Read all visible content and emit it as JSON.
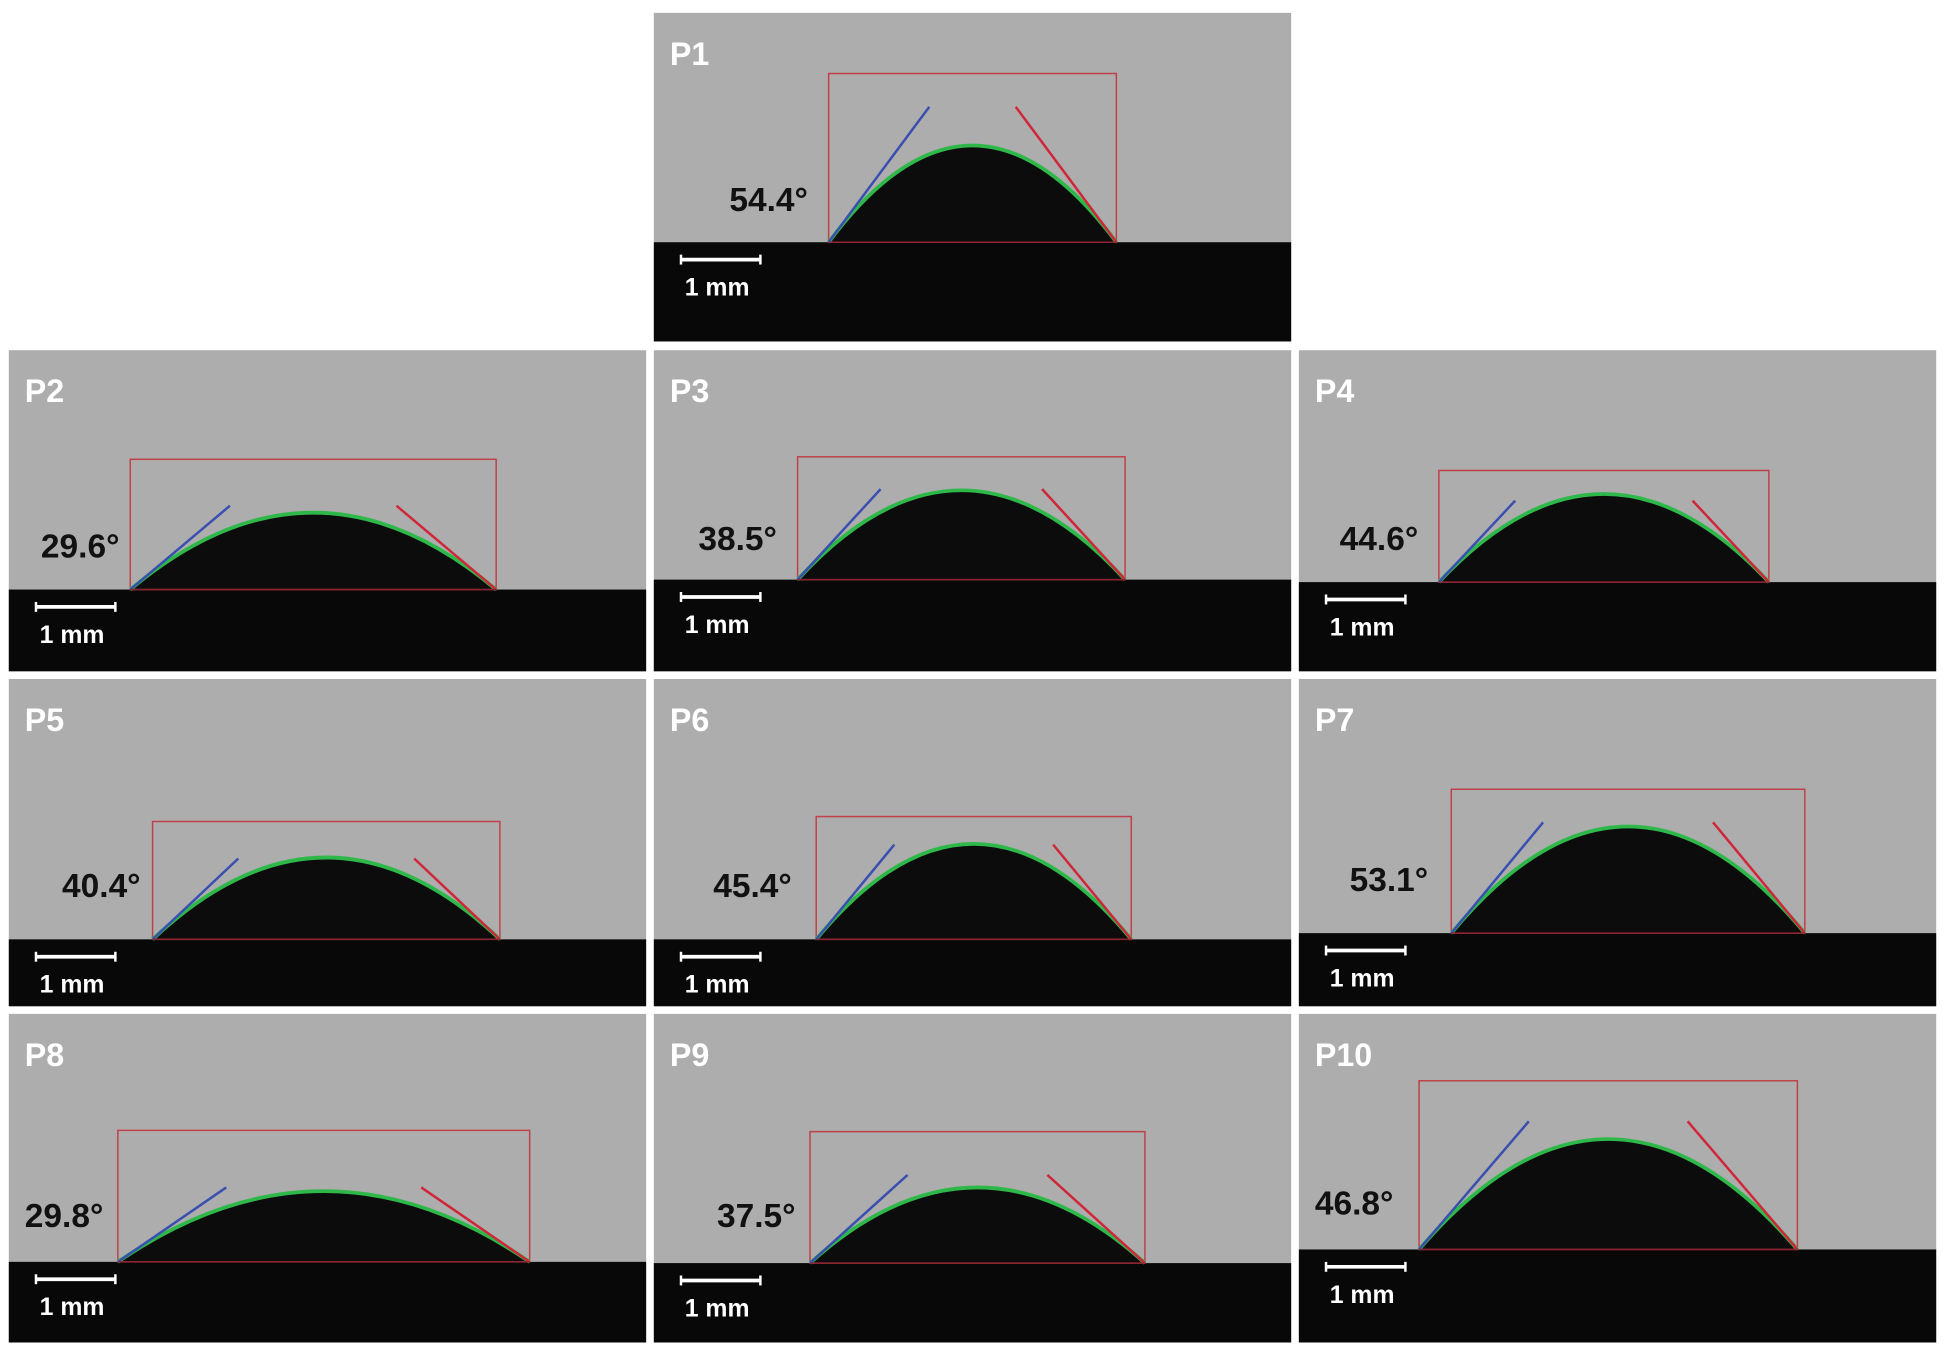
{
  "panels": [
    {
      "label": "P1",
      "angle": "54.4°",
      "scale": "1 mm"
    },
    {
      "label": "P2",
      "angle": "29.6°",
      "scale": "1 mm"
    },
    {
      "label": "P3",
      "angle": "38.5°",
      "scale": "1 mm"
    },
    {
      "label": "P4",
      "angle": "44.6°",
      "scale": "1 mm"
    },
    {
      "label": "P5",
      "angle": "40.4°",
      "scale": "1 mm"
    },
    {
      "label": "P6",
      "angle": "45.4°",
      "scale": "1 mm"
    },
    {
      "label": "P7",
      "angle": "53.1°",
      "scale": "1 mm"
    },
    {
      "label": "P8",
      "angle": "29.8°",
      "scale": "1 mm"
    },
    {
      "label": "P9",
      "angle": "37.5°",
      "scale": "1 mm"
    },
    {
      "label": "P10",
      "angle": "46.8°",
      "scale": "1 mm"
    }
  ]
}
